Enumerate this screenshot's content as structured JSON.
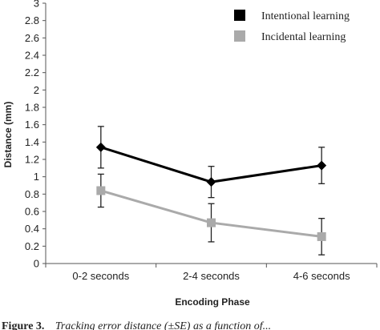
{
  "chart_data": {
    "type": "line",
    "title": "",
    "xlabel": "Encoding Phase",
    "ylabel": "Distance (mm)",
    "categories": [
      "0-2 seconds",
      "2-4 seconds",
      "4-6 seconds"
    ],
    "ylim": [
      0,
      3
    ],
    "yticks": [
      "0",
      "0.2",
      "0.4",
      "0.6",
      "0.8",
      "1",
      "1.2",
      "1.4",
      "1.6",
      "1.8",
      "2",
      "2.2",
      "2.4",
      "2.6",
      "2.8",
      "3"
    ],
    "grid": false,
    "legend_position": "top-right",
    "series": [
      {
        "name": "Intentional learning",
        "values": [
          1.34,
          0.94,
          1.13
        ],
        "error": [
          0.24,
          0.18,
          0.21
        ],
        "color": "#000000",
        "marker": "diamond"
      },
      {
        "name": "Incidental learning",
        "values": [
          0.84,
          0.47,
          0.31
        ],
        "error": [
          0.19,
          0.22,
          0.21
        ],
        "color": "#aaaaaa",
        "marker": "square"
      }
    ]
  },
  "caption": {
    "figure_label": "Figure 3.",
    "text": "Tracking error distance (±SE) as a function of..."
  }
}
